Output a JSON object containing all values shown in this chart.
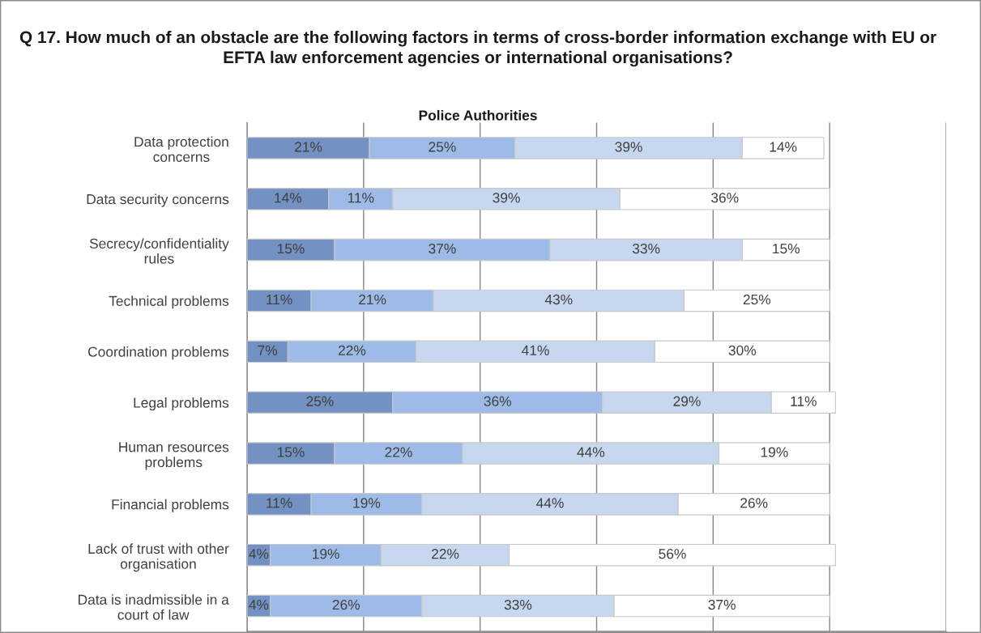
{
  "chart_data": {
    "type": "bar",
    "orientation": "horizontal",
    "stacked": true,
    "title": "Q 17. How much of an obstacle are the following factors in terms of cross-border information exchange with EU or EFTA law enforcement agencies or international organisations?",
    "subtitle": "Police Authorities",
    "categories": [
      "Data protection concerns",
      "Data security concerns",
      "Secrecy/confidentiality rules",
      "Technical problems",
      "Coordination problems",
      "Legal problems",
      "Human resources problems",
      "Financial problems",
      "Lack of trust with other organisation",
      "Data is inadmissible in a court of law"
    ],
    "series": [
      {
        "color": "#7391c2",
        "values": [
          21,
          14,
          15,
          11,
          7,
          25,
          15,
          11,
          4,
          4
        ],
        "value_labels": [
          "21%",
          "14%",
          "15%",
          "11%",
          "7%",
          "25%",
          "15%",
          "11%",
          "4%",
          "4%"
        ]
      },
      {
        "color": "#9dbbe6",
        "values": [
          25,
          11,
          37,
          21,
          22,
          36,
          22,
          19,
          19,
          26
        ],
        "value_labels": [
          "25%",
          "11%",
          "37%",
          "21%",
          "22%",
          "36%",
          "22%",
          "19%",
          "19%",
          "26%"
        ]
      },
      {
        "color": "#c6d7ef",
        "values": [
          39,
          39,
          33,
          43,
          41,
          29,
          44,
          44,
          22,
          33
        ],
        "value_labels": [
          "39%",
          "39%",
          "33%",
          "43%",
          "41%",
          "29%",
          "44%",
          "44%",
          "22%",
          "33%"
        ]
      },
      {
        "color": "#ffffff",
        "values": [
          14,
          36,
          15,
          25,
          30,
          11,
          19,
          26,
          56,
          37
        ],
        "value_labels": [
          "14%",
          "36%",
          "15%",
          "25%",
          "30%",
          "11%",
          "19%",
          "26%",
          "56%",
          "37%"
        ]
      }
    ],
    "xlim": [
      0,
      120
    ],
    "xticks": [
      {
        "value": 0,
        "label": null
      },
      {
        "value": 20,
        "label": null
      },
      {
        "value": 40,
        "label": null
      },
      {
        "value": 60,
        "label": null
      },
      {
        "value": 80,
        "label": null
      },
      {
        "value": 100,
        "label": null
      },
      {
        "value": 120,
        "label": null
      }
    ],
    "grid": "x",
    "tick_labels": "y"
  }
}
